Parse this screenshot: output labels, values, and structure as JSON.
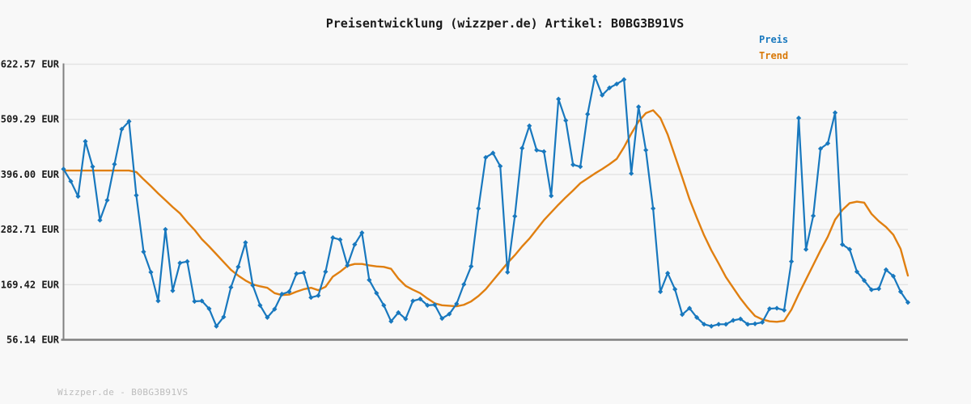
{
  "title": "Preisentwicklung (wizzper.de) Artikel: B0BG3B91VS",
  "legend": {
    "preis_label": "Preis",
    "trend_label": "Trend"
  },
  "footer": "Wizzper.de - B0BG3B91VS",
  "colors": {
    "preis_line": "#1878be",
    "trend_line": "#e07f10",
    "legend_preis_text": "#1878be",
    "legend_trend_text": "#d97908",
    "axis": "#808080",
    "grid": "#e3e3e3",
    "tick_text": "#1a1a1a",
    "footer_text": "#bcbcbc",
    "background": "#f8f8f8"
  },
  "chart_data": {
    "type": "line",
    "title": "Preisentwicklung (wizzper.de) Artikel: B0BG3B91VS",
    "xlabel": "",
    "ylabel": "",
    "currency": "EUR",
    "grid": "horizontal",
    "legend_position": "top-right",
    "x_tick_labels_visible": false,
    "ylim": [
      56.14,
      622.57
    ],
    "y_ticks": [
      622.57,
      509.29,
      396.0,
      282.71,
      169.42,
      56.14
    ],
    "y_tick_labels": [
      "622.57 EUR",
      "509.29 EUR",
      "396.00 EUR",
      "282.71 EUR",
      "169.42 EUR",
      "56.14 EUR"
    ],
    "series": [
      {
        "name": "Preis",
        "color": "#1878be",
        "marker": "diamond",
        "values": [
          407,
          382,
          351,
          464,
          412,
          302,
          343,
          417,
          489,
          505,
          353,
          237,
          195,
          136,
          283,
          157,
          214,
          217,
          135,
          136,
          120,
          84,
          103,
          164,
          206,
          256,
          168,
          127,
          102,
          119,
          150,
          155,
          192,
          194,
          143,
          147,
          196,
          266,
          262,
          209,
          252,
          276,
          179,
          152,
          127,
          94,
          112,
          99,
          136,
          140,
          127,
          128,
          100,
          109,
          130,
          170,
          207,
          326,
          431,
          440,
          413,
          195,
          310,
          450,
          496,
          446,
          443,
          352,
          551,
          507,
          416,
          412,
          520,
          597,
          559,
          574,
          582,
          591,
          398,
          535,
          446,
          326,
          155,
          193,
          160,
          108,
          121,
          102,
          88,
          84,
          88,
          88,
          96,
          99,
          88,
          89,
          92,
          120,
          121,
          117,
          217,
          512,
          242,
          311,
          449,
          460,
          523,
          252,
          242,
          196,
          178,
          159,
          161,
          200,
          187,
          155,
          133
        ]
      },
      {
        "name": "Trend",
        "color": "#e07f10",
        "marker": "none",
        "values": [
          404,
          404,
          404,
          404,
          404,
          404,
          404,
          404,
          404,
          404,
          401,
          386,
          372,
          357,
          343,
          329,
          316,
          298,
          282,
          263,
          248,
          232,
          216,
          200,
          188,
          178,
          170,
          166,
          163,
          152,
          148,
          149,
          155,
          160,
          163,
          158,
          165,
          186,
          196,
          208,
          212,
          212,
          209,
          207,
          206,
          202,
          182,
          167,
          159,
          152,
          141,
          131,
          127,
          126,
          125,
          128,
          135,
          146,
          160,
          178,
          196,
          214,
          230,
          248,
          264,
          283,
          302,
          318,
          334,
          349,
          363,
          378,
          388,
          398,
          407,
          417,
          428,
          452,
          480,
          505,
          522,
          528,
          512,
          478,
          434,
          390,
          345,
          307,
          271,
          240,
          213,
          185,
          163,
          141,
          122,
          105,
          98,
          94,
          93,
          95,
          118,
          150,
          180,
          210,
          240,
          268,
          303,
          323,
          337,
          340,
          338,
          315,
          300,
          288,
          272,
          243,
          188
        ]
      }
    ]
  }
}
